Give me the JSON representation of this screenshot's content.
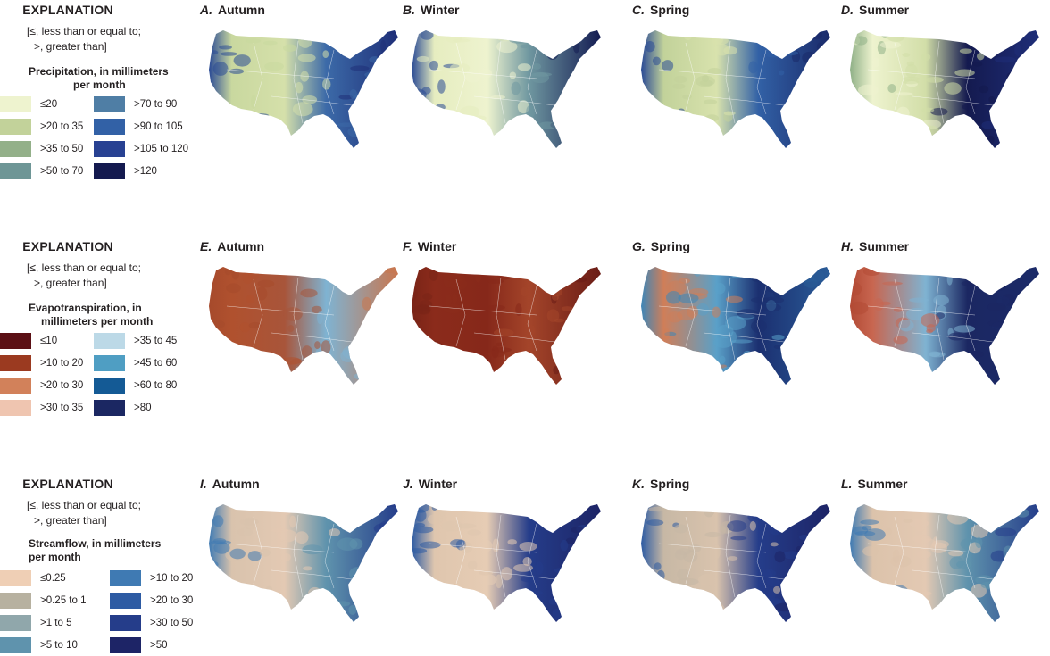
{
  "legends": [
    {
      "title": "EXPLANATION",
      "note_line1": "[≤, less than or equal to;",
      "note_line2": ">, greater than]",
      "variable_line1": "Precipitation, in millimeters",
      "variable_line2": "per month",
      "classes": [
        {
          "label": "≤20",
          "color": "#eef3cf"
        },
        {
          "label": ">20 to 35",
          "color": "#c2d29a"
        },
        {
          "label": ">35 to 50",
          "color": "#93b089"
        },
        {
          "label": ">50 to 70",
          "color": "#6e9696"
        },
        {
          "label": ">70 to 90",
          "color": "#4f7ea5"
        },
        {
          "label": ">90 to 105",
          "color": "#3261a6"
        },
        {
          "label": ">105 to 120",
          "color": "#284192"
        },
        {
          "label": ">120",
          "color": "#141a4f"
        }
      ]
    },
    {
      "title": "EXPLANATION",
      "note_line1": "[≤, less than or equal to;",
      "note_line2": ">, greater than]",
      "variable_line1": "Evapotranspiration, in",
      "variable_line2": "millimeters per month",
      "classes": [
        {
          "label": "≤10",
          "color": "#5b1015"
        },
        {
          "label": ">10 to 20",
          "color": "#9b3a20"
        },
        {
          "label": ">20 to 30",
          "color": "#d2815a"
        },
        {
          "label": ">30 to 35",
          "color": "#efc5b0"
        },
        {
          "label": ">35 to 45",
          "color": "#bcd9e7"
        },
        {
          "label": ">45 to 60",
          "color": "#4f9ec3"
        },
        {
          "label": ">60 to 80",
          "color": "#145a95"
        },
        {
          "label": ">80",
          "color": "#1b2762"
        }
      ]
    },
    {
      "title": "EXPLANATION",
      "note_line1": "[≤, less than or equal to;",
      "note_line2": ">, greater than]",
      "variable_line1": "Streamflow, in millimeters",
      "variable_line2": "per month",
      "classes": [
        {
          "label": "≤0.25",
          "color": "#efcfb5"
        },
        {
          "label": ">0.25 to 1",
          "color": "#b7b1a0"
        },
        {
          "label": ">1 to 5",
          "color": "#90a7ab"
        },
        {
          "label": ">5 to 10",
          "color": "#5f93ad"
        },
        {
          "label": ">10 to 20",
          "color": "#3f7ab3"
        },
        {
          "label": ">20 to 30",
          "color": "#2d5ba3"
        },
        {
          "label": ">30 to 50",
          "color": "#253d8a"
        },
        {
          "label": ">50",
          "color": "#1d2466"
        }
      ]
    }
  ],
  "panels": [
    {
      "letter": "A.",
      "season": "Autumn",
      "colors": [
        "#2a4a95",
        "#c9d89f",
        "#d5e0aa",
        "#3c6aa8",
        "#1f2f78"
      ]
    },
    {
      "letter": "B.",
      "season": "Winter",
      "colors": [
        "#2a4a95",
        "#e6edc0",
        "#eef3cf",
        "#6f97a0",
        "#131b52"
      ]
    },
    {
      "letter": "C.",
      "season": "Spring",
      "colors": [
        "#2a4a95",
        "#c2d29a",
        "#d8e2ad",
        "#3261a6",
        "#1a2a6a"
      ]
    },
    {
      "letter": "D.",
      "season": "Summer",
      "colors": [
        "#8fb087",
        "#eef3cf",
        "#d2dea8",
        "#141a4f",
        "#1f2e78"
      ]
    },
    {
      "letter": "E.",
      "season": "Autumn",
      "colors": [
        "#a64a2c",
        "#b0512e",
        "#a8553a",
        "#7fb3d2",
        "#c9764e"
      ]
    },
    {
      "letter": "F.",
      "season": "Winter",
      "colors": [
        "#7a2417",
        "#8b2b1b",
        "#86281a",
        "#a4452a",
        "#6a1c16"
      ]
    },
    {
      "letter": "G.",
      "season": "Spring",
      "colors": [
        "#3d86b8",
        "#d07e58",
        "#5aa0c8",
        "#1b2f70",
        "#2a5c98"
      ]
    },
    {
      "letter": "H.",
      "season": "Summer",
      "colors": [
        "#b24a35",
        "#c86650",
        "#7fb3d2",
        "#1b2762",
        "#1b2a68"
      ]
    },
    {
      "letter": "I.",
      "season": "Autumn",
      "colors": [
        "#3f7ab3",
        "#d9c3ad",
        "#e3c9b3",
        "#5f93ad",
        "#253d8a"
      ]
    },
    {
      "letter": "J.",
      "season": "Winter",
      "colors": [
        "#2d5ba3",
        "#dfc6ae",
        "#e6ccb4",
        "#253d8a",
        "#1d2466"
      ]
    },
    {
      "letter": "K.",
      "season": "Spring",
      "colors": [
        "#2d5ba3",
        "#c7b8a5",
        "#d9c3ad",
        "#253d8a",
        "#1d2466"
      ]
    },
    {
      "letter": "L.",
      "season": "Summer",
      "colors": [
        "#3f7ab3",
        "#dcc3ab",
        "#e3c9b3",
        "#5f93ad",
        "#253d8a"
      ]
    }
  ]
}
